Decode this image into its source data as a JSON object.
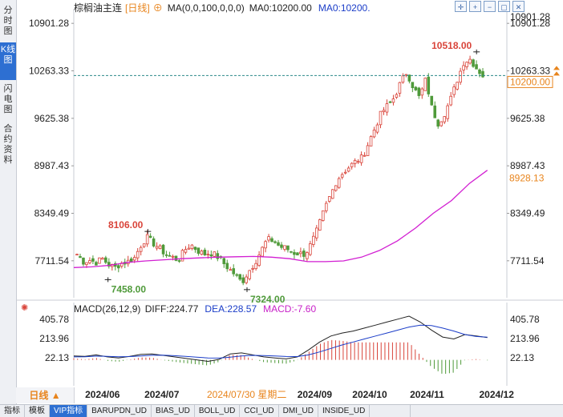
{
  "side_tabs": [
    {
      "label": "分时图",
      "active": false
    },
    {
      "label": "K线图",
      "active": true
    },
    {
      "label": "闪电图",
      "active": false
    },
    {
      "label": "合约资料",
      "active": false
    }
  ],
  "header": {
    "symbol": "棕榈油主连",
    "period_tag": "[日线]",
    "ma_params": "MA(0,0,100,0,0,0)",
    "ma0_text": "MA0:10200.00",
    "ma0_dup_text": "MA0:10200."
  },
  "tool_icons": [
    "crosshair-icon",
    "zoom-in-icon",
    "zoom-out-icon",
    "window-icon",
    "close-icon"
  ],
  "macd_header": {
    "params": "MACD(26,12,9)",
    "diff": "DIFF:224.77",
    "dea": "DEA:228.57",
    "macd": "MACD:-7.60"
  },
  "period_selector": "日线",
  "bottom_tabs": [
    {
      "label": "指标",
      "active": false
    },
    {
      "label": "模板",
      "active": false
    },
    {
      "label": "VIP指标",
      "active": true
    },
    {
      "label": "BARUPDN_UD",
      "active": false
    },
    {
      "label": "BIAS_UD",
      "active": false
    },
    {
      "label": "BOLL_UD",
      "active": false
    },
    {
      "label": "CCI_UD",
      "active": false
    },
    {
      "label": "DMI_UD",
      "active": false
    },
    {
      "label": "INSIDE_UD",
      "active": false
    },
    {
      "label": "",
      "active": false
    }
  ],
  "colors": {
    "up": "#d9443a",
    "down": "#4f9a3a",
    "ma": "#d21fd2",
    "diff": "#222222",
    "dea": "#1a3cc8",
    "macd_label": "#c71fc7",
    "price_dash": "#2b8a8a",
    "current_price_bg": "#e8841c"
  },
  "chart_data": {
    "type": "candlestick",
    "y_ticks": [
      "10901.28",
      "10263.33",
      "9625.38",
      "8987.43",
      "8349.49",
      "7711.54"
    ],
    "y_range": [
      7430,
      11000
    ],
    "x_labels": [
      "2024/06",
      "2024/07",
      "2024/09",
      "2024/10",
      "2024/11",
      "2024/12"
    ],
    "cursor_date": "2024/07/30 星期二",
    "current_price": "10200.00",
    "current_price_value": 10200,
    "ma_value_label": "8928.13",
    "annotations": [
      {
        "text": "8106.00",
        "value": 8106,
        "type": "high"
      },
      {
        "text": "7458.00",
        "value": 7458,
        "type": "low"
      },
      {
        "text": "7324.00",
        "value": 7324,
        "type": "low"
      },
      {
        "text": "10518.00",
        "value": 10518,
        "type": "high"
      }
    ],
    "close_path": [
      7800,
      7700,
      7720,
      7690,
      7740,
      7660,
      7620,
      7680,
      7700,
      7740,
      7910,
      8030,
      7950,
      7880,
      7800,
      7760,
      7720,
      7860,
      7930,
      7850,
      7800,
      7820,
      7780,
      7690,
      7600,
      7520,
      7420,
      7560,
      7680,
      7840,
      8000,
      7980,
      7900,
      7880,
      7820,
      7810,
      7800,
      7950,
      8150,
      8400,
      8600,
      8800,
      8900,
      8980,
      9050,
      9100,
      9300,
      9500,
      9700,
      9800,
      9900,
      10100,
      10250,
      10050,
      9900,
      10150,
      9750,
      9550,
      9700,
      9900,
      10150,
      10380,
      10420,
      10300,
      10200
    ],
    "ma_path": [
      7620,
      7630,
      7650,
      7690,
      7710,
      7725,
      7740,
      7750,
      7760,
      7765,
      7770,
      7760,
      7740,
      7700,
      7700,
      7710,
      7760,
      7850,
      7980,
      8150,
      8350,
      8520,
      8750,
      8928
    ],
    "macd_axis": [
      "405.78",
      "213.96",
      "22.13"
    ],
    "macd_range": [
      -180,
      480
    ],
    "diff_path": [
      40,
      35,
      50,
      30,
      20,
      35,
      55,
      60,
      45,
      30,
      15,
      0,
      -15,
      5,
      60,
      70,
      50,
      30,
      20,
      10,
      30,
      100,
      180,
      240,
      270,
      290,
      320,
      350,
      380,
      410,
      440,
      380,
      300,
      230,
      210,
      255,
      240,
      225
    ],
    "dea_path": [
      30,
      32,
      38,
      36,
      32,
      33,
      40,
      46,
      47,
      42,
      36,
      28,
      20,
      18,
      28,
      40,
      45,
      44,
      40,
      34,
      33,
      50,
      80,
      115,
      150,
      180,
      210,
      240,
      270,
      300,
      330,
      350,
      345,
      320,
      290,
      255,
      235,
      228
    ]
  }
}
